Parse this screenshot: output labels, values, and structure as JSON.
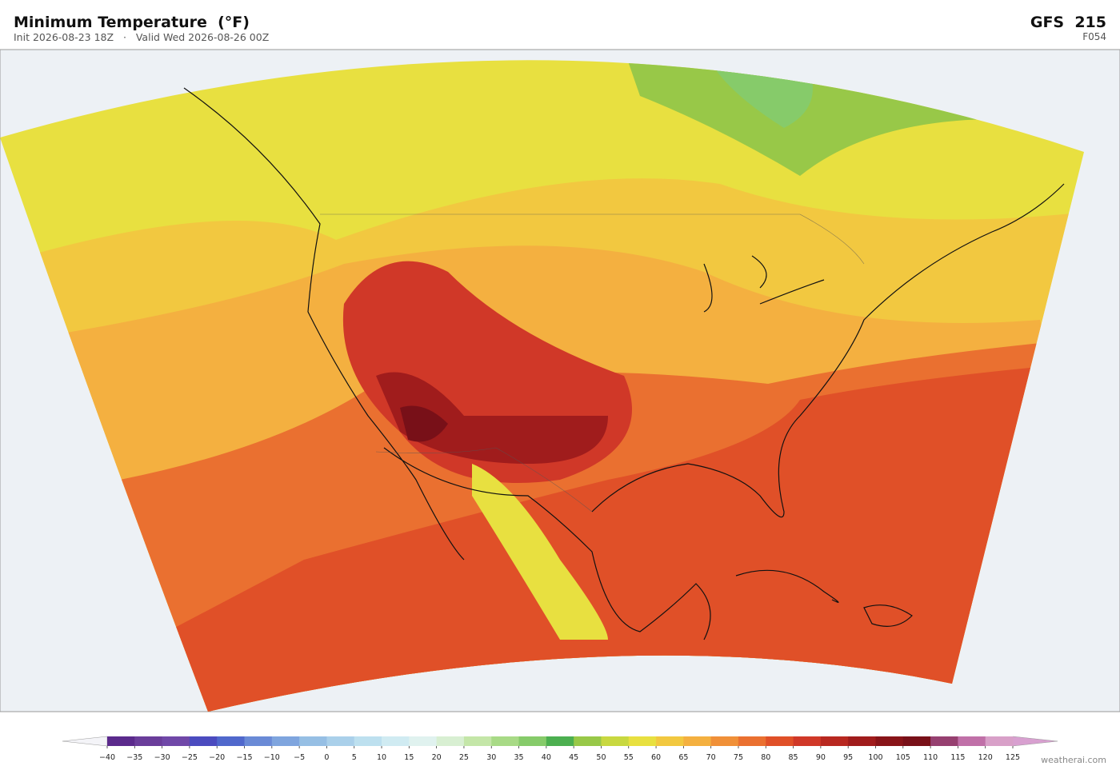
{
  "header": {
    "title": "Minimum Temperature  (°F)",
    "subtitle": "Init 2026-08-23 18Z   ·   Valid Wed 2026-08-26 00Z",
    "model": "GFS  215",
    "forecast_hour": "F054"
  },
  "colorbar": {
    "ticks": [
      {
        "value": -40,
        "label": "−40"
      },
      {
        "value": -35,
        "label": "−35"
      },
      {
        "value": -30,
        "label": "−30"
      },
      {
        "value": -25,
        "label": "−25"
      },
      {
        "value": -20,
        "label": "−20"
      },
      {
        "value": -15,
        "label": "−15"
      },
      {
        "value": -10,
        "label": "−10"
      },
      {
        "value": -5,
        "label": "−5"
      },
      0,
      5,
      10,
      15,
      20,
      25,
      30,
      35,
      40,
      45,
      50,
      55,
      60,
      65,
      70,
      75,
      80,
      85,
      90,
      95,
      100,
      105,
      110,
      115,
      120,
      125
    ],
    "colors": [
      "#5b2a8c",
      "#6a3d9a",
      "#7048a8",
      "#4b4bbf",
      "#5068cc",
      "#6a8ad6",
      "#7fa5de",
      "#96bfe4",
      "#aad0ea",
      "#bde0ef",
      "#d0ebf2",
      "#e0f2ef",
      "#d8efd2",
      "#c4e6a8",
      "#a8da86",
      "#86cb6a",
      "#4caf50",
      "#98c848",
      "#c8d840",
      "#e8e040",
      "#f2c840",
      "#f4b040",
      "#f09038",
      "#ea7030",
      "#e05028",
      "#d03828",
      "#b82820",
      "#a01c1c",
      "#881418",
      "#781018",
      "#964070",
      "#c070a8",
      "#d8a0c8"
    ],
    "under_color": "#f4f4f8",
    "over_color": "#d8a0d0"
  },
  "footer": {
    "credit": "weatherai.com"
  }
}
